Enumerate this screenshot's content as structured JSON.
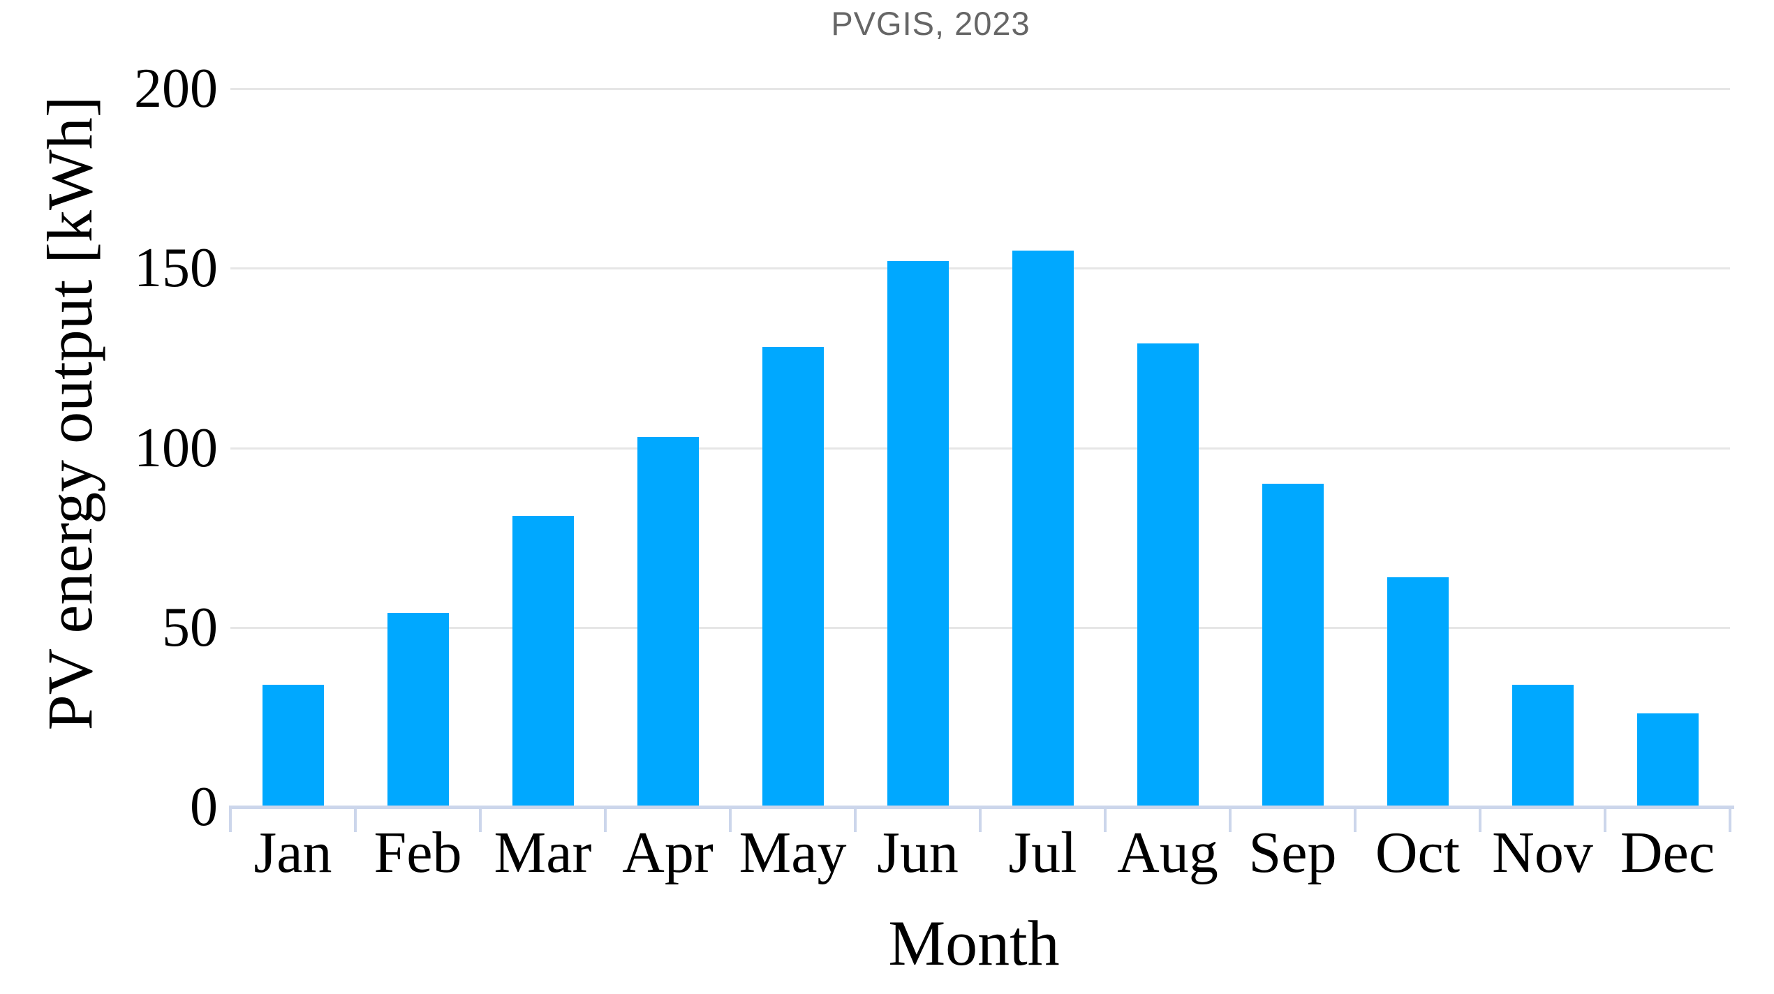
{
  "chart_data": {
    "type": "bar",
    "title": "PVGIS, 2023",
    "xlabel": "Month",
    "ylabel": "PV energy output [kWh]",
    "categories": [
      "Jan",
      "Feb",
      "Mar",
      "Apr",
      "May",
      "Jun",
      "Jul",
      "Aug",
      "Sep",
      "Oct",
      "Nov",
      "Dec"
    ],
    "values": [
      34,
      54,
      81,
      103,
      128,
      152,
      155,
      129,
      90,
      64,
      34,
      26
    ],
    "ylim": [
      0,
      200
    ],
    "yticks": [
      0,
      50,
      100,
      150,
      200
    ],
    "grid": "horizontal",
    "legend": "none",
    "colors": {
      "bar": "#00A8FF",
      "axis_line": "#ccd6eb",
      "gridline": "#e6e6e6",
      "title_text": "#666666",
      "axis_text": "#000000"
    }
  }
}
